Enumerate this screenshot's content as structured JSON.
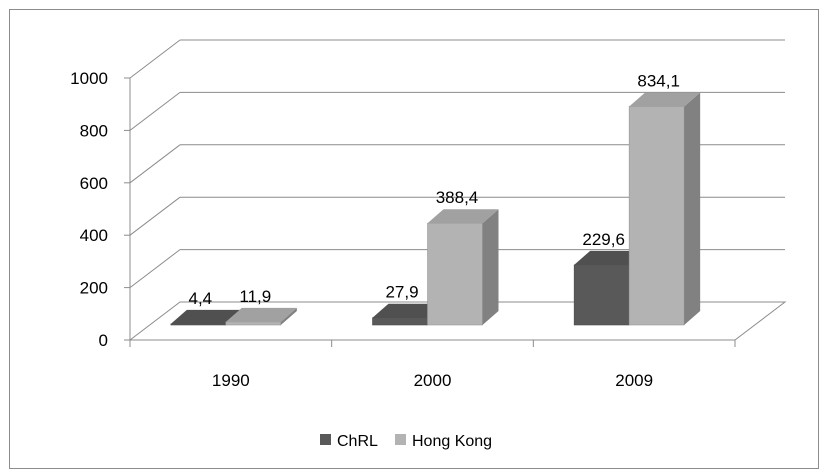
{
  "chart_data": {
    "type": "bar",
    "title": "",
    "xlabel": "",
    "ylabel": "",
    "categories": [
      "1990",
      "2000",
      "2009"
    ],
    "series": [
      {
        "name": "ChRL",
        "values": [
          4.4,
          27.9,
          229.6
        ],
        "labels": [
          "4,4",
          "27,9",
          "229,6"
        ],
        "color": "#595959"
      },
      {
        "name": "Hong Kong",
        "values": [
          11.9,
          388.4,
          834.1
        ],
        "labels": [
          "11,9",
          "388,4",
          "834,1"
        ],
        "color": "#b3b3b3"
      }
    ],
    "ylim": [
      0,
      1000
    ],
    "yticks": [
      "0",
      "200",
      "400",
      "600",
      "800",
      "1000"
    ],
    "grid": true,
    "legend": "bottom"
  }
}
